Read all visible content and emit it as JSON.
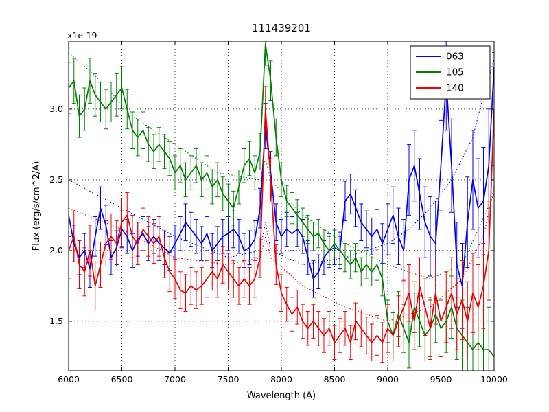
{
  "figure": {
    "background": "#ffffff"
  },
  "chart_data": {
    "type": "line",
    "title": "111439201",
    "y_offset_label": "x1e-19",
    "xlabel": "Wavelength (A)",
    "ylabel": "Flux (erg/s/cm^2/A)",
    "xlim": [
      6000,
      10000
    ],
    "ylim": [
      1.15,
      3.48
    ],
    "xticks": [
      6000,
      6500,
      7000,
      7500,
      8000,
      8500,
      9000,
      9500,
      10000
    ],
    "xtick_labels": [
      "6000",
      "6500",
      "7000",
      "7500",
      "8000",
      "8500",
      "9000",
      "9500",
      "10000"
    ],
    "yticks": [
      1.5,
      2.0,
      2.5,
      3.0
    ],
    "ytick_labels": [
      "1.5",
      "2.0",
      "2.5",
      "3.0"
    ],
    "grid": true,
    "legend_position": "upper right",
    "x_start": 6000,
    "x_step": 50,
    "series": [
      {
        "name": "063",
        "color": "#0000ee",
        "values": [
          2.25,
          2.05,
          1.95,
          2.0,
          1.87,
          2.1,
          2.3,
          2.18,
          1.95,
          2.02,
          2.15,
          2.1,
          2.0,
          2.08,
          2.12,
          2.05,
          2.1,
          2.05,
          2.02,
          1.98,
          2.05,
          2.12,
          2.2,
          2.15,
          2.1,
          2.05,
          2.12,
          2.0,
          2.05,
          2.1,
          2.12,
          2.15,
          2.1,
          2.0,
          2.02,
          2.08,
          2.3,
          2.88,
          2.55,
          2.2,
          2.1,
          2.15,
          2.12,
          2.15,
          2.1,
          1.95,
          1.8,
          1.85,
          1.95,
          2.0,
          2.02,
          2.0,
          2.35,
          2.4,
          2.3,
          2.2,
          2.15,
          2.1,
          2.15,
          2.05,
          2.15,
          2.25,
          2.1,
          2.0,
          2.5,
          2.6,
          2.4,
          2.2,
          2.1,
          2.05,
          2.6,
          3.2,
          2.6,
          1.9,
          1.75,
          2.2,
          2.5,
          2.3,
          2.35,
          2.6,
          3.3
        ],
        "errors": [
          0.15,
          0.13,
          0.12,
          0.12,
          0.13,
          0.14,
          0.15,
          0.14,
          0.12,
          0.12,
          0.13,
          0.12,
          0.12,
          0.12,
          0.12,
          0.12,
          0.12,
          0.12,
          0.12,
          0.12,
          0.13,
          0.12,
          0.13,
          0.12,
          0.12,
          0.12,
          0.12,
          0.12,
          0.12,
          0.12,
          0.12,
          0.13,
          0.12,
          0.12,
          0.12,
          0.13,
          0.14,
          0.16,
          0.15,
          0.13,
          0.12,
          0.12,
          0.12,
          0.12,
          0.12,
          0.12,
          0.13,
          0.12,
          0.12,
          0.12,
          0.12,
          0.13,
          0.14,
          0.14,
          0.13,
          0.13,
          0.13,
          0.13,
          0.14,
          0.14,
          0.18,
          0.2,
          0.2,
          0.22,
          0.25,
          0.25,
          0.25,
          0.25,
          0.28,
          0.3,
          0.32,
          0.35,
          0.33,
          0.3,
          0.3,
          0.32,
          0.35,
          0.35,
          0.38,
          0.4,
          0.45
        ]
      },
      {
        "name": "105",
        "color": "#008000",
        "values": [
          3.15,
          3.2,
          2.95,
          3.0,
          3.2,
          3.1,
          3.05,
          3.0,
          3.05,
          3.1,
          3.15,
          3.0,
          2.85,
          2.8,
          2.85,
          2.75,
          2.7,
          2.75,
          2.7,
          2.65,
          2.55,
          2.6,
          2.5,
          2.55,
          2.6,
          2.5,
          2.55,
          2.45,
          2.5,
          2.4,
          2.35,
          2.3,
          2.45,
          2.6,
          2.65,
          2.55,
          2.7,
          3.46,
          3.2,
          2.8,
          2.5,
          2.35,
          2.3,
          2.25,
          2.2,
          2.15,
          2.1,
          2.12,
          2.05,
          2.0,
          2.05,
          2.0,
          1.95,
          1.9,
          1.95,
          1.85,
          1.9,
          1.85,
          1.9,
          1.8,
          1.5,
          1.4,
          1.55,
          1.45,
          1.35,
          1.6,
          1.5,
          1.4,
          1.45,
          1.55,
          1.45,
          1.5,
          1.6,
          1.45,
          1.4,
          1.35,
          1.3,
          1.35,
          1.3,
          1.3,
          1.25
        ],
        "errors": [
          0.18,
          0.16,
          0.15,
          0.15,
          0.16,
          0.15,
          0.14,
          0.14,
          0.14,
          0.15,
          0.15,
          0.14,
          0.13,
          0.13,
          0.13,
          0.12,
          0.12,
          0.12,
          0.12,
          0.12,
          0.12,
          0.12,
          0.12,
          0.12,
          0.12,
          0.12,
          0.12,
          0.12,
          0.12,
          0.12,
          0.12,
          0.12,
          0.12,
          0.12,
          0.12,
          0.12,
          0.13,
          0.15,
          0.14,
          0.13,
          0.12,
          0.11,
          0.11,
          0.11,
          0.1,
          0.1,
          0.1,
          0.1,
          0.1,
          0.1,
          0.1,
          0.1,
          0.1,
          0.1,
          0.1,
          0.1,
          0.1,
          0.1,
          0.11,
          0.12,
          0.15,
          0.16,
          0.16,
          0.17,
          0.18,
          0.18,
          0.18,
          0.18,
          0.2,
          0.2,
          0.2,
          0.22,
          0.22,
          0.22,
          0.25,
          0.25,
          0.25,
          0.28,
          0.28,
          0.3,
          0.3
        ]
      },
      {
        "name": "140",
        "color": "#ee0000",
        "values": [
          2.0,
          2.1,
          1.9,
          1.85,
          2.0,
          1.75,
          1.9,
          2.05,
          2.1,
          2.05,
          2.2,
          2.25,
          2.1,
          2.05,
          2.15,
          2.1,
          2.05,
          2.1,
          1.95,
          1.85,
          1.8,
          1.72,
          1.7,
          1.75,
          1.72,
          1.75,
          1.8,
          1.85,
          1.8,
          1.9,
          1.85,
          1.8,
          1.75,
          1.8,
          1.75,
          1.8,
          1.95,
          3.0,
          2.5,
          1.9,
          1.7,
          1.62,
          1.55,
          1.6,
          1.5,
          1.45,
          1.5,
          1.45,
          1.4,
          1.45,
          1.35,
          1.4,
          1.45,
          1.35,
          1.5,
          1.45,
          1.4,
          1.35,
          1.4,
          1.35,
          1.45,
          1.4,
          1.5,
          1.6,
          1.7,
          1.5,
          1.75,
          1.6,
          1.45,
          1.7,
          1.5,
          1.6,
          1.7,
          1.55,
          1.65,
          1.5,
          1.7,
          1.6,
          1.75,
          2.0,
          3.0
        ],
        "errors": [
          0.2,
          0.18,
          0.17,
          0.17,
          0.18,
          0.17,
          0.16,
          0.16,
          0.16,
          0.16,
          0.17,
          0.16,
          0.15,
          0.15,
          0.15,
          0.14,
          0.14,
          0.14,
          0.14,
          0.14,
          0.14,
          0.13,
          0.13,
          0.13,
          0.13,
          0.13,
          0.13,
          0.13,
          0.13,
          0.13,
          0.13,
          0.13,
          0.13,
          0.13,
          0.13,
          0.13,
          0.14,
          0.16,
          0.15,
          0.14,
          0.13,
          0.12,
          0.12,
          0.12,
          0.12,
          0.12,
          0.12,
          0.12,
          0.12,
          0.12,
          0.12,
          0.12,
          0.12,
          0.12,
          0.13,
          0.13,
          0.13,
          0.13,
          0.14,
          0.14,
          0.17,
          0.18,
          0.18,
          0.19,
          0.2,
          0.2,
          0.2,
          0.2,
          0.22,
          0.22,
          0.25,
          0.25,
          0.25,
          0.25,
          0.28,
          0.28,
          0.28,
          0.3,
          0.3,
          0.35,
          0.4
        ]
      }
    ],
    "dotted_series": [
      {
        "name": "063-dotted",
        "color": "#0000ee",
        "x": [
          6000,
          6500,
          7000,
          7500,
          7800,
          7850,
          7900,
          8200,
          8600,
          9000,
          9200,
          9400,
          9600,
          9800,
          9900,
          10000
        ],
        "values": [
          2.5,
          2.3,
          2.1,
          1.95,
          2.0,
          2.2,
          2.0,
          1.9,
          1.95,
          2.05,
          2.15,
          2.3,
          2.5,
          2.8,
          3.1,
          3.35
        ]
      },
      {
        "name": "105-dotted",
        "color": "#008000",
        "x": [
          6000,
          6300,
          6600,
          7000,
          7400,
          7800,
          7850,
          7900,
          8200,
          8600,
          9000,
          9400,
          9700,
          10000
        ],
        "values": [
          3.4,
          3.2,
          2.95,
          2.75,
          2.55,
          2.5,
          2.65,
          2.5,
          2.25,
          2.05,
          1.9,
          1.8,
          1.9,
          2.4
        ]
      },
      {
        "name": "140-dotted",
        "color": "#ee0000",
        "x": [
          6000,
          6500,
          7000,
          7500,
          7800,
          7850,
          7900,
          8200,
          8600,
          9000,
          9400,
          9700,
          9900,
          10000
        ],
        "values": [
          2.3,
          2.15,
          1.95,
          1.9,
          1.95,
          2.1,
          1.95,
          1.75,
          1.6,
          1.5,
          1.6,
          1.8,
          2.1,
          2.45
        ]
      }
    ]
  }
}
